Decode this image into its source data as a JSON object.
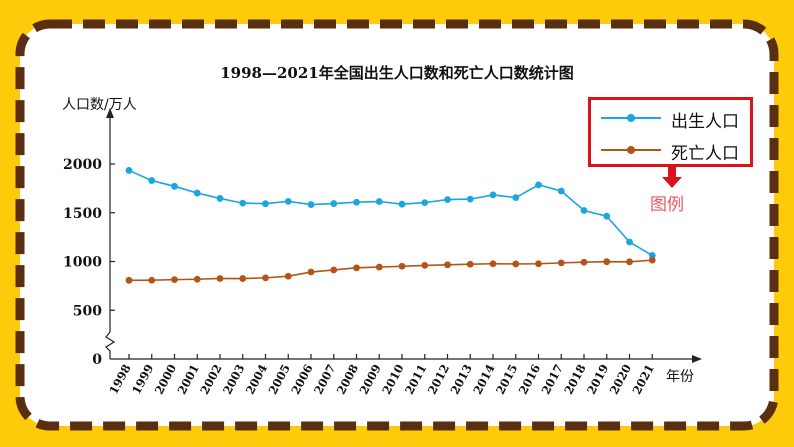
{
  "title": "1998—2021年全国出生人口数和死亡人口数统计图",
  "legend_note": "图例",
  "colors": {
    "background": "#FDCB0A",
    "panel": "#FFFFFF",
    "dash": "#5A2E10",
    "legend_border": "#D8141A",
    "births": "#1AA7DD",
    "deaths": "#B5541A",
    "legend_note": "#E8585F"
  },
  "chart_data": {
    "type": "line",
    "title": "1998—2021年全国出生人口数和死亡人口数统计图",
    "ylabel": "人口数/万人",
    "xlabel": "年份",
    "ylim": [
      0,
      2000
    ],
    "yticks": [
      0,
      500,
      1000,
      1500,
      2000
    ],
    "axis_break": true,
    "grid": false,
    "legend_position": "top-right",
    "categories": [
      "1998",
      "1999",
      "2000",
      "2001",
      "2002",
      "2003",
      "2004",
      "2005",
      "2006",
      "2007",
      "2008",
      "2009",
      "2010",
      "2011",
      "2012",
      "2013",
      "2014",
      "2015",
      "2016",
      "2017",
      "2018",
      "2019",
      "2020",
      "2021"
    ],
    "series": [
      {
        "name": "出生人口",
        "color": "#1AA7DD",
        "values": [
          1934,
          1830,
          1771,
          1702,
          1647,
          1599,
          1593,
          1617,
          1584,
          1594,
          1608,
          1615,
          1588,
          1604,
          1635,
          1640,
          1683,
          1655,
          1786,
          1723,
          1523,
          1465,
          1200,
          1062
        ]
      },
      {
        "name": "死亡人口",
        "color": "#B5541A",
        "values": [
          807,
          808,
          814,
          818,
          826,
          825,
          832,
          849,
          892,
          913,
          935,
          943,
          951,
          960,
          966,
          972,
          977,
          975,
          977,
          986,
          993,
          998,
          997,
          1014
        ]
      }
    ]
  }
}
